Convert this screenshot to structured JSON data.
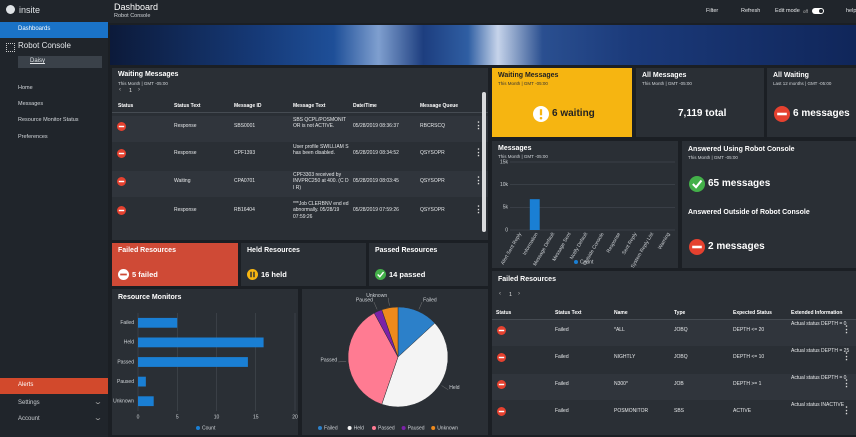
{
  "sidebar": {
    "brand": "insite",
    "items": [
      "Dashboards",
      "Robot Console"
    ],
    "sub_item": "Daisy",
    "menu": [
      "Home",
      "Messages",
      "Resource Monitor Status",
      "Preferences"
    ],
    "bottom": [
      "Alerts",
      "Settings",
      "Account"
    ]
  },
  "header": {
    "title": "Dashboard",
    "subtitle": "Robot Console",
    "actions": [
      "Filter",
      "Refresh",
      "Edit mode"
    ],
    "toggle": "off",
    "help": "help"
  },
  "waiting_messages": {
    "title": "Waiting Messages",
    "subtitle": "This Month | GMT -05:00",
    "page": "1",
    "columns": [
      "Status",
      "Status Text",
      "Message ID",
      "Message Text",
      "Date/Time",
      "Message Queue"
    ],
    "rows": [
      [
        "Response",
        "SBS0001",
        "SBS QCPL/POSMONIT OR is not ACTIVE.",
        "05/28/2019 08:36:37",
        "RBCRSCQ"
      ],
      [
        "Response",
        "CPF1393",
        "User profile SWILLIAM S has been disabled.",
        "05/28/2019 08:34:52",
        "QSYSOPR"
      ],
      [
        "Waiting",
        "CPA0701",
        "CPF3303 received by INVPRC250 at 400. (C D I R)",
        "05/28/2019 08:03:45",
        "QSYSOPR"
      ],
      [
        "Response",
        "RB16404",
        "***Job CLERBNV end ed abnormally. 05/28/19 07:59:26",
        "05/28/2019 07:59:26",
        "QSYSOPR"
      ]
    ]
  },
  "kpis": [
    {
      "title": "Waiting Messages",
      "subtitle": "This Month | GMT -05:00",
      "value": "6 waiting",
      "icon": "warning",
      "color": "#f6b511"
    },
    {
      "title": "All Messages",
      "subtitle": "This Month | GMT -05:00",
      "value": "7,119 total"
    },
    {
      "title": "All Waiting",
      "subtitle": "Last 12 months | GMT -05:00",
      "value": "6 messages",
      "icon": "error"
    },
    {
      "title": "Failed Resources",
      "value": "5 failed",
      "icon": "error-light",
      "color": "#cf4a36"
    },
    {
      "title": "Held Resources",
      "value": "16 held",
      "icon": "pause"
    },
    {
      "title": "Passed Resources",
      "value": "14 passed",
      "icon": "check"
    }
  ],
  "answered": [
    {
      "title": "Answered Using Robot Console",
      "subtitle": "This Month | GMT -05:00",
      "value": "65 messages",
      "icon": "check"
    },
    {
      "title": "Answered Outside of Robot Console",
      "value": "2 messages",
      "icon": "error"
    }
  ],
  "failed_resources": {
    "title": "Failed Resources",
    "page": "1",
    "columns": [
      "Status",
      "Status Text",
      "Name",
      "Type",
      "Expected Status",
      "Extended Information"
    ],
    "rows": [
      [
        "Failed",
        "*ALL",
        "JOBQ",
        "DEPTH <= 20",
        "Actual status DEPTH = 0"
      ],
      [
        "Failed",
        "NIGHTLY",
        "JOBQ",
        "DEPTH <= 10",
        "Actual status DEPTH = 25"
      ],
      [
        "Failed",
        "N300*",
        "JOB",
        "DEPTH >= 1",
        "Actual status DEPTH = 0"
      ],
      [
        "Failed",
        "POSMONITOR",
        "SBS",
        "ACTIVE",
        "Actual status INACTIVE"
      ]
    ]
  },
  "chart_data": [
    {
      "type": "bar",
      "title": "Messages",
      "subtitle": "This Month | GMT -05:00",
      "categories": [
        "Alert Sent Reply",
        "Information",
        "Message Default",
        "Message Sent",
        "Notify Default",
        "Outside Console",
        "Response",
        "Sent Reply",
        "System Reply List",
        "Warning"
      ],
      "series": [
        {
          "name": "Count",
          "color": "#1a7fd4",
          "values": [
            0,
            6800,
            0,
            0,
            0,
            0,
            0,
            0,
            0,
            0
          ]
        }
      ],
      "ylim": [
        0,
        15000
      ],
      "yticks": [
        0,
        {
          "value": 5000,
          "label": "5k"
        },
        {
          "value": 10000,
          "label": "10k"
        },
        {
          "value": 15000,
          "label": "15k"
        }
      ],
      "grid": true
    },
    {
      "type": "hbar",
      "title": "Resource Monitors",
      "categories": [
        "Failed",
        "Held",
        "Passed",
        "Paused",
        "Unknown"
      ],
      "series": [
        {
          "name": "Count",
          "color": "#1a7fd4",
          "values": [
            5,
            16,
            14,
            1,
            2
          ]
        }
      ],
      "xlim": [
        0,
        20
      ],
      "xticks": [
        0,
        5,
        10,
        15,
        20
      ],
      "grid": true
    },
    {
      "type": "pie",
      "categories": [
        "Failed",
        "Held",
        "Passed",
        "Paused",
        "Unknown"
      ],
      "values": [
        5,
        16,
        14,
        1,
        2
      ],
      "colors": [
        "#2c80c9",
        "#f4f4f4",
        "#ff7b92",
        "#7b22a8",
        "#ef8a1c"
      ]
    }
  ]
}
